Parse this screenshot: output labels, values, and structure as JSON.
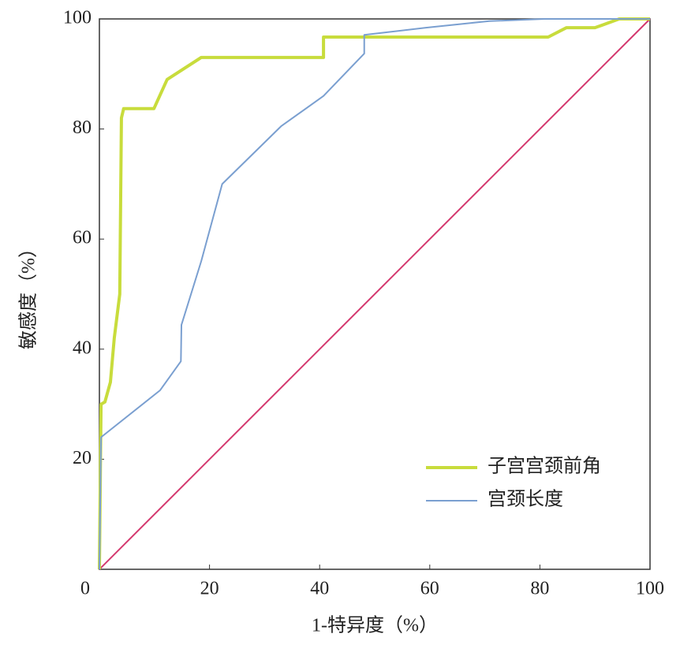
{
  "chart_data": {
    "type": "line",
    "xlabel": "1-特异度（%）",
    "ylabel": "敏感度（%）",
    "xlim": [
      0,
      100
    ],
    "ylim": [
      0,
      100
    ],
    "xticks": [
      0,
      20,
      40,
      60,
      80,
      100
    ],
    "yticks": [
      20,
      40,
      60,
      80,
      100
    ],
    "grid": false,
    "legend": "lower right",
    "series": [
      {
        "name": "子宫宫颈前角",
        "color": "#c8dc3c",
        "width": 4,
        "x": [
          0,
          0.3,
          1,
          2,
          2.7,
          3.7,
          4,
          4.4,
          9.9,
          12.3,
          18.5,
          40.7,
          40.7,
          81.5,
          84.8,
          90,
          94.4,
          100
        ],
        "values": [
          0,
          30,
          30.4,
          34,
          42,
          50,
          82,
          83.7,
          83.7,
          89,
          93,
          93,
          96.7,
          96.7,
          98.4,
          98.4,
          100,
          100
        ]
      },
      {
        "name": "宫颈长度",
        "color": "#7a9fd0",
        "width": 2,
        "x": [
          0,
          0.3,
          11,
          14.8,
          14.9,
          18.5,
          22.3,
          33,
          40.7,
          48.1,
          48.1,
          59.3,
          70.8,
          80.8,
          100
        ],
        "values": [
          0,
          24,
          32.5,
          37.8,
          44.4,
          56,
          70,
          80.5,
          86,
          93.7,
          97.1,
          98.4,
          99.6,
          100,
          100
        ]
      }
    ],
    "reference_line": {
      "color": "#d4386e",
      "x": [
        0,
        100
      ],
      "values": [
        0,
        100
      ]
    }
  }
}
